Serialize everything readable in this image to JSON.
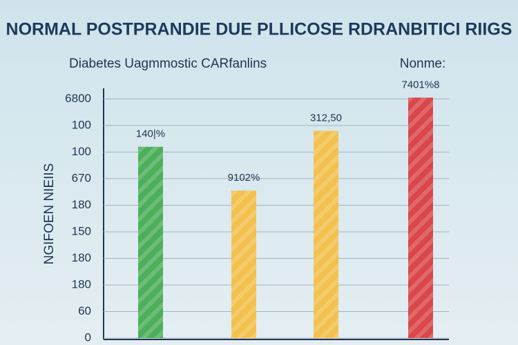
{
  "chart_data": {
    "type": "bar",
    "title": "NORMAL POSTPRANDIE DUE PLLICOSE RDRANBITICI RIIGS",
    "subtitle": "Diabetes Uagmmostic CARfanlins",
    "legend_text": "Nonme:",
    "y_label": "NGIFOEN NIEIIS",
    "categories": [
      null,
      null,
      null,
      null
    ],
    "values": [
      7.2,
      5.55,
      7.8,
      9.05
    ],
    "colors": [
      "#4caf5a",
      "#f2c14e",
      "#f2c14e",
      "#d9474b"
    ],
    "annotations": [
      "140|%",
      "9102%",
      "312,50",
      "7401%8"
    ],
    "ylim": [
      0,
      9.4
    ],
    "yticks": [
      0,
      {
        "value": 1,
        "label": "60"
      },
      {
        "value": 2,
        "label": "180"
      },
      {
        "value": 3,
        "label": "180"
      },
      {
        "value": 4,
        "label": "150"
      },
      {
        "value": 5,
        "label": "180"
      },
      {
        "value": 6,
        "label": "670"
      },
      {
        "value": 7,
        "label": "100"
      },
      {
        "value": 8,
        "label": "100"
      },
      {
        "value": 9,
        "label": "6800"
      }
    ],
    "grid": true
  }
}
